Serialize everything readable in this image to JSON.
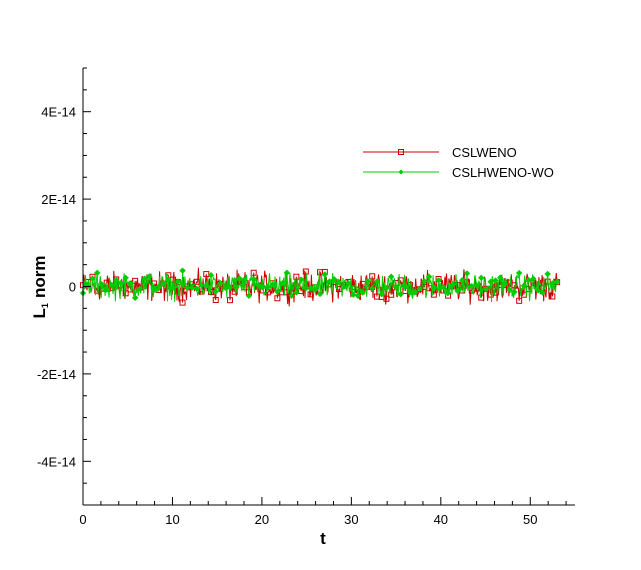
{
  "chart_data": {
    "type": "line",
    "xlabel": "t",
    "ylabel_main": "L",
    "ylabel_sub": "1",
    "ylabel_rest": "norm",
    "xlim": [
      0,
      55
    ],
    "ylim": [
      -5e-14,
      5e-14
    ],
    "x_ticks": [
      0,
      10,
      20,
      30,
      40,
      50
    ],
    "x_tick_labels": [
      "0",
      "10",
      "20",
      "30",
      "40",
      "50"
    ],
    "y_ticks": [
      4e-14,
      2e-14,
      0,
      -2e-14,
      -4e-14
    ],
    "y_tick_labels": [
      "4E-14",
      "2E-14",
      "0",
      "-2E-14",
      "-4E-14"
    ],
    "legend_placement": "top-right",
    "grid": false,
    "x_end": 53,
    "series": [
      {
        "name": "CSLWENO",
        "color": "#cc0000",
        "marker": "square",
        "noise_center": 0,
        "noise_band": [
          -4e-15,
          6e-15
        ]
      },
      {
        "name": "CSLHWENO-WO",
        "color": "#00cc00",
        "marker": "diamond",
        "noise_center": 0,
        "noise_band": [
          -4e-15,
          6e-15
        ]
      }
    ]
  }
}
